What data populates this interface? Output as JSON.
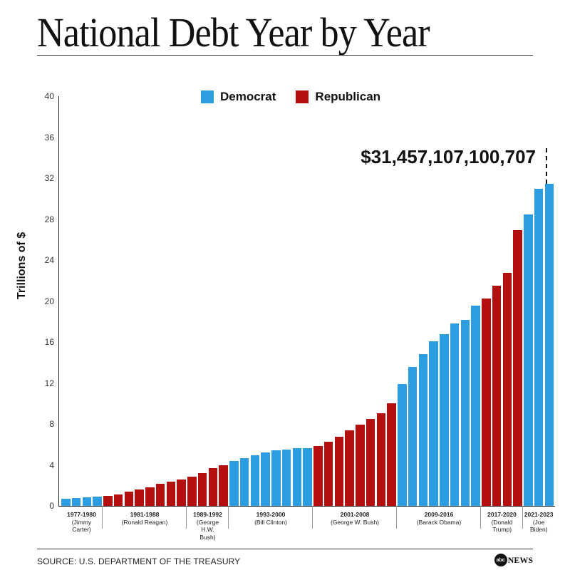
{
  "header": {
    "title": "National Debt Year by Year"
  },
  "legend": [
    {
      "label": "Democrat",
      "color": "#2b9de0"
    },
    {
      "label": "Republican",
      "color": "#b30f0f"
    }
  ],
  "annotation": "$31,457,107,100,707",
  "footer": {
    "source": "SOURCE: U.S. DEPARTMENT OF THE TREASURY",
    "logo_circle": "abc",
    "logo_text": "NEWS"
  },
  "chart_data": {
    "type": "bar",
    "title": "National Debt Year by Year",
    "xlabel": "",
    "ylabel": "Trillions of $",
    "ylim": [
      0,
      40
    ],
    "yticks": [
      0,
      4,
      8,
      12,
      16,
      20,
      24,
      28,
      32,
      36,
      40
    ],
    "grid": false,
    "legend_position": "top",
    "annotation": {
      "text": "$31,457,107,100,707",
      "target": "2023"
    },
    "series": [
      {
        "name": "Democrat",
        "color": "#2b9de0"
      },
      {
        "name": "Republican",
        "color": "#b30f0f"
      }
    ],
    "categories": [
      "1977",
      "1978",
      "1979",
      "1980",
      "1981",
      "1982",
      "1983",
      "1984",
      "1985",
      "1986",
      "1987",
      "1988",
      "1989",
      "1990",
      "1991",
      "1992",
      "1993",
      "1994",
      "1995",
      "1996",
      "1997",
      "1998",
      "1999",
      "2000",
      "2001",
      "2002",
      "2003",
      "2004",
      "2005",
      "2006",
      "2007",
      "2008",
      "2009",
      "2010",
      "2011",
      "2012",
      "2013",
      "2014",
      "2015",
      "2016",
      "2017",
      "2018",
      "2019",
      "2020",
      "2021",
      "2022",
      "2023"
    ],
    "values": [
      0.7,
      0.77,
      0.83,
      0.91,
      1.0,
      1.14,
      1.38,
      1.57,
      1.82,
      2.13,
      2.35,
      2.6,
      2.86,
      3.21,
      3.67,
      4.0,
      4.41,
      4.69,
      4.97,
      5.22,
      5.41,
      5.53,
      5.66,
      5.67,
      5.81,
      6.23,
      6.78,
      7.38,
      7.93,
      8.51,
      9.01,
      10.02,
      11.91,
      13.56,
      14.79,
      16.07,
      16.74,
      17.82,
      18.15,
      19.57,
      20.24,
      21.52,
      22.72,
      26.95,
      28.43,
      30.93,
      31.46
    ],
    "party": [
      "D",
      "D",
      "D",
      "D",
      "R",
      "R",
      "R",
      "R",
      "R",
      "R",
      "R",
      "R",
      "R",
      "R",
      "R",
      "R",
      "D",
      "D",
      "D",
      "D",
      "D",
      "D",
      "D",
      "D",
      "R",
      "R",
      "R",
      "R",
      "R",
      "R",
      "R",
      "R",
      "D",
      "D",
      "D",
      "D",
      "D",
      "D",
      "D",
      "D",
      "R",
      "R",
      "R",
      "R",
      "D",
      "D",
      "D"
    ],
    "groups": [
      {
        "years": "1977-1980",
        "president": "(Jimmy Carter)",
        "start": 0,
        "count": 4
      },
      {
        "years": "1981-1988",
        "president": "(Ronald Reagan)",
        "start": 4,
        "count": 8
      },
      {
        "years": "1989-1992",
        "president": "(George H.W. Bush)",
        "start": 12,
        "count": 4
      },
      {
        "years": "1993-2000",
        "president": "(Bill Clinton)",
        "start": 16,
        "count": 8
      },
      {
        "years": "2001-2008",
        "president": "(George W. Bush)",
        "start": 24,
        "count": 8
      },
      {
        "years": "2009-2016",
        "president": "(Barack Obama)",
        "start": 32,
        "count": 8
      },
      {
        "years": "2017-2020",
        "president": "(Donald Trump)",
        "start": 40,
        "count": 4
      },
      {
        "years": "2021-2023",
        "president": "(Joe Biden)",
        "start": 44,
        "count": 3
      }
    ]
  }
}
